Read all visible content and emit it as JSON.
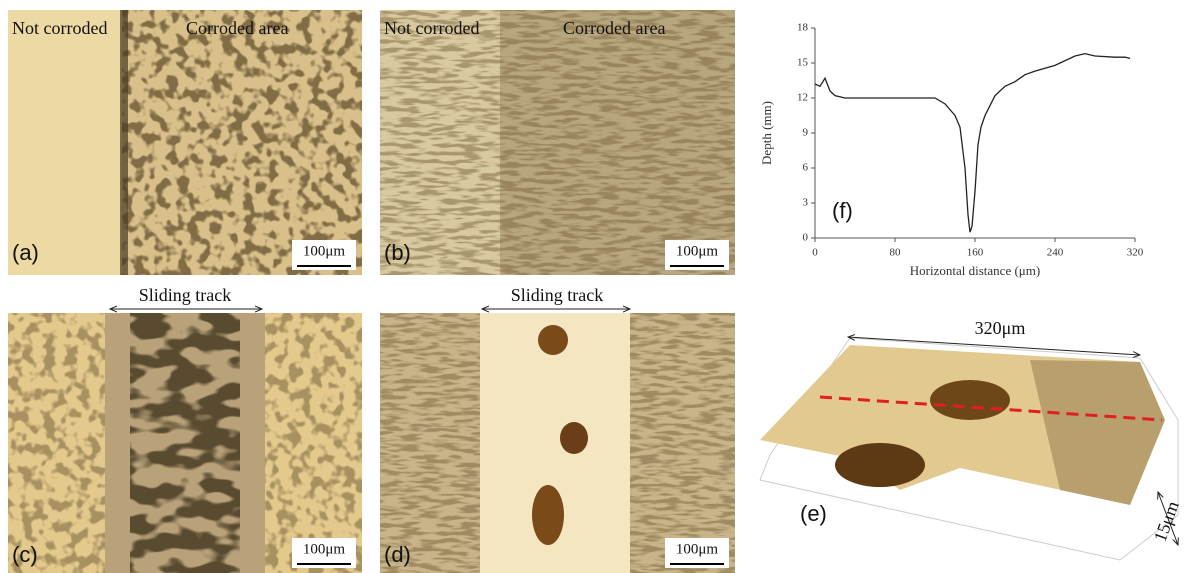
{
  "panels": [
    {
      "label": "(a)",
      "left_text": "Not corroded",
      "right_text": "Corroded area",
      "scale": "100μm"
    },
    {
      "label": "(b)",
      "left_text": "Not corroded",
      "right_text": "Corroded area",
      "scale": "100μm"
    },
    {
      "label": "(c)",
      "title": "Sliding track",
      "scale": "100μm"
    },
    {
      "label": "(d)",
      "title": "Sliding track",
      "scale": "100μm"
    },
    {
      "label": "(e)",
      "width_label": "320μm",
      "depth_label": "15μm"
    }
  ],
  "chart_data": {
    "type": "line",
    "annotation": "(f)",
    "x_label": "Horizontal distance (μm)",
    "y_label": "Depth (mm)",
    "x": [
      0,
      5,
      10,
      15,
      20,
      30,
      40,
      60,
      80,
      100,
      120,
      130,
      140,
      145,
      150,
      153,
      155,
      157,
      160,
      163,
      166,
      170,
      180,
      190,
      200,
      210,
      220,
      240,
      260,
      270,
      280,
      300,
      310,
      315
    ],
    "values": [
      13.2,
      13.0,
      13.7,
      12.6,
      12.2,
      12.0,
      12.0,
      12.0,
      12.0,
      12.0,
      12.0,
      11.5,
      10.5,
      9.5,
      6,
      2,
      0.5,
      1,
      4,
      8,
      9.5,
      10.5,
      12.2,
      13,
      13.4,
      14,
      14.3,
      14.8,
      15.6,
      15.8,
      15.6,
      15.5,
      15.5,
      15.4
    ],
    "color": "#222222",
    "xlim": [
      0,
      320
    ],
    "xticks": [
      0,
      80,
      160,
      240,
      320
    ],
    "ylim": [
      0,
      18
    ],
    "yticks": [
      0,
      3,
      6,
      9,
      12,
      15,
      18
    ],
    "grid": false
  }
}
